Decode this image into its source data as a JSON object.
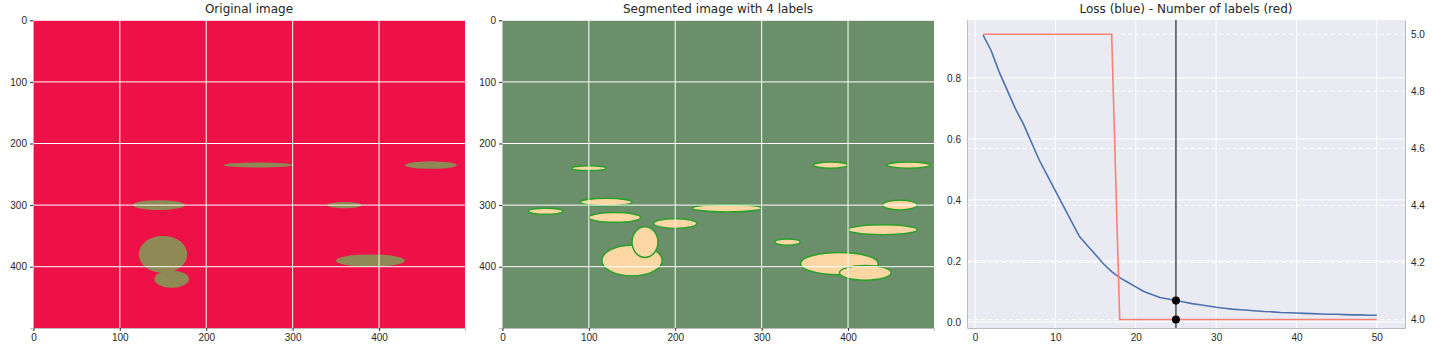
{
  "chart_data": [
    {
      "type": "image",
      "title": "Original image",
      "xlim": [
        -0.5,
        499.5
      ],
      "ylim": [
        499.5,
        -0.5
      ],
      "xticks": [
        0,
        100,
        200,
        300,
        400
      ],
      "yticks": [
        0,
        100,
        200,
        300,
        400
      ],
      "grid": true,
      "colors": [
        "#ee1148",
        "#8f8a55"
      ],
      "regions": [
        {
          "cx": 150,
          "cy": 380,
          "rx": 28,
          "ry": 30
        },
        {
          "cx": 160,
          "cy": 420,
          "rx": 20,
          "ry": 14
        },
        {
          "cx": 145,
          "cy": 300,
          "rx": 30,
          "ry": 8
        },
        {
          "cx": 390,
          "cy": 390,
          "rx": 40,
          "ry": 10
        },
        {
          "cx": 460,
          "cy": 235,
          "rx": 30,
          "ry": 6
        },
        {
          "cx": 260,
          "cy": 235,
          "rx": 40,
          "ry": 4
        },
        {
          "cx": 360,
          "cy": 300,
          "rx": 20,
          "ry": 5
        }
      ]
    },
    {
      "type": "image",
      "title": "Segmented image with 4 labels",
      "xlim": [
        -0.5,
        499.5
      ],
      "ylim": [
        499.5,
        -0.5
      ],
      "xticks": [
        0,
        100,
        200,
        300,
        400
      ],
      "yticks": [
        0,
        100,
        200,
        300,
        400
      ],
      "grid": true,
      "colors": [
        "#6a8f6a",
        "#fcd7a4"
      ],
      "regions": [
        {
          "cx": 150,
          "cy": 390,
          "rx": 35,
          "ry": 25
        },
        {
          "cx": 165,
          "cy": 360,
          "rx": 15,
          "ry": 25
        },
        {
          "cx": 130,
          "cy": 320,
          "rx": 30,
          "ry": 8
        },
        {
          "cx": 200,
          "cy": 330,
          "rx": 25,
          "ry": 8
        },
        {
          "cx": 260,
          "cy": 305,
          "rx": 40,
          "ry": 6
        },
        {
          "cx": 390,
          "cy": 395,
          "rx": 45,
          "ry": 18
        },
        {
          "cx": 420,
          "cy": 410,
          "rx": 30,
          "ry": 12
        },
        {
          "cx": 440,
          "cy": 340,
          "rx": 40,
          "ry": 8
        },
        {
          "cx": 460,
          "cy": 300,
          "rx": 20,
          "ry": 8
        },
        {
          "cx": 470,
          "cy": 235,
          "rx": 25,
          "ry": 5
        },
        {
          "cx": 380,
          "cy": 235,
          "rx": 20,
          "ry": 5
        },
        {
          "cx": 120,
          "cy": 295,
          "rx": 30,
          "ry": 6
        },
        {
          "cx": 50,
          "cy": 310,
          "rx": 20,
          "ry": 5
        },
        {
          "cx": 330,
          "cy": 360,
          "rx": 15,
          "ry": 5
        },
        {
          "cx": 100,
          "cy": 240,
          "rx": 20,
          "ry": 4
        }
      ]
    },
    {
      "type": "line",
      "title": "Loss (blue) - Number of labels (red)",
      "x": [
        1,
        2,
        3,
        4,
        5,
        6,
        7,
        8,
        9,
        10,
        11,
        12,
        13,
        14,
        15,
        16,
        17,
        18,
        19,
        20,
        21,
        22,
        23,
        24,
        25,
        26,
        27,
        28,
        29,
        30,
        31,
        32,
        33,
        34,
        35,
        36,
        37,
        38,
        39,
        40,
        41,
        42,
        43,
        44,
        45,
        46,
        47,
        48,
        49,
        50
      ],
      "xlim": [
        -1.0,
        53.5
      ],
      "xticks": [
        0,
        10,
        20,
        30,
        40,
        50
      ],
      "ylim": [
        -0.02,
        0.99
      ],
      "yticks": [
        {
          "value": 0,
          "label": "0.0"
        },
        {
          "value": 0.2,
          "label": "0.2"
        },
        {
          "value": 0.4,
          "label": "0.4"
        },
        {
          "value": 0.6,
          "label": "0.6"
        },
        {
          "value": 0.8,
          "label": "0.8"
        }
      ],
      "y2lim": [
        3.97,
        5.05
      ],
      "y2ticks": [
        {
          "value": 4,
          "label": "4.0"
        },
        {
          "value": 4.2,
          "label": "4.2"
        },
        {
          "value": 4.4,
          "label": "4.4"
        },
        {
          "value": 4.6,
          "label": "4.6"
        },
        {
          "value": 4.8,
          "label": "4.8"
        },
        {
          "value": 5,
          "label": "5.0"
        }
      ],
      "grid": true,
      "cursor_x": 25,
      "series": [
        {
          "color": "#4c72b0",
          "values": [
            0.94,
            0.89,
            0.82,
            0.76,
            0.7,
            0.65,
            0.59,
            0.53,
            0.48,
            0.43,
            0.38,
            0.33,
            0.28,
            0.25,
            0.22,
            0.19,
            0.165,
            0.145,
            0.13,
            0.115,
            0.1,
            0.09,
            0.08,
            0.075,
            0.07,
            0.065,
            0.06,
            0.056,
            0.052,
            0.048,
            0.045,
            0.042,
            0.04,
            0.038,
            0.036,
            0.034,
            0.033,
            0.031,
            0.03,
            0.029,
            0.028,
            0.027,
            0.026,
            0.025,
            0.025,
            0.024,
            0.023,
            0.023,
            0.022,
            0.022
          ]
        },
        {
          "color": "#fa8072",
          "axis": "y2",
          "values": [
            5,
            5,
            5,
            5,
            5,
            5,
            5,
            5,
            5,
            5,
            5,
            5,
            5,
            5,
            5,
            5,
            5,
            4,
            4,
            4,
            4,
            4,
            4,
            4,
            4,
            4,
            4,
            4,
            4,
            4,
            4,
            4,
            4,
            4,
            4,
            4,
            4,
            4,
            4,
            4,
            4,
            4,
            4,
            4,
            4,
            4,
            4,
            4,
            4,
            4
          ]
        }
      ]
    }
  ]
}
